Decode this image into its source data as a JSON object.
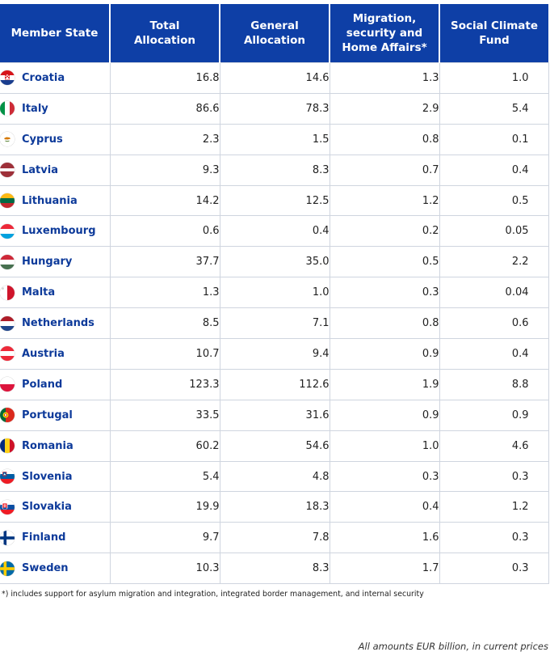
{
  "table": {
    "headers": {
      "state": "Member State",
      "total": [
        "Total",
        "Allocation"
      ],
      "general": [
        "General",
        "Allocation"
      ],
      "migration": [
        "Migration,",
        "security and",
        "Home Affairs*"
      ],
      "social": [
        "Social Climate",
        "Fund"
      ]
    },
    "rows": [
      {
        "name": "Croatia",
        "flag_icon": "croatia-flag-icon",
        "total": "16.8",
        "general": "14.6",
        "migration": "1.3",
        "social": "1.0"
      },
      {
        "name": "Italy",
        "flag_icon": "italy-flag-icon",
        "total": "86.6",
        "general": "78.3",
        "migration": "2.9",
        "social": "5.4"
      },
      {
        "name": "Cyprus",
        "flag_icon": "cyprus-flag-icon",
        "total": "2.3",
        "general": "1.5",
        "migration": "0.8",
        "social": "0.1"
      },
      {
        "name": "Latvia",
        "flag_icon": "latvia-flag-icon",
        "total": "9.3",
        "general": "8.3",
        "migration": "0.7",
        "social": "0.4"
      },
      {
        "name": "Lithuania",
        "flag_icon": "lithuania-flag-icon",
        "total": "14.2",
        "general": "12.5",
        "migration": "1.2",
        "social": "0.5"
      },
      {
        "name": "Luxembourg",
        "flag_icon": "luxembourg-flag-icon",
        "total": "0.6",
        "general": "0.4",
        "migration": "0.2",
        "social": "0.05"
      },
      {
        "name": "Hungary",
        "flag_icon": "hungary-flag-icon",
        "total": "37.7",
        "general": "35.0",
        "migration": "0.5",
        "social": "2.2"
      },
      {
        "name": "Malta",
        "flag_icon": "malta-flag-icon",
        "total": "1.3",
        "general": "1.0",
        "migration": "0.3",
        "social": "0.04"
      },
      {
        "name": "Netherlands",
        "flag_icon": "netherlands-flag-icon",
        "total": "8.5",
        "general": "7.1",
        "migration": "0.8",
        "social": "0.6"
      },
      {
        "name": "Austria",
        "flag_icon": "austria-flag-icon",
        "total": "10.7",
        "general": "9.4",
        "migration": "0.9",
        "social": "0.4"
      },
      {
        "name": "Poland",
        "flag_icon": "poland-flag-icon",
        "total": "123.3",
        "general": "112.6",
        "migration": "1.9",
        "social": "8.8"
      },
      {
        "name": "Portugal",
        "flag_icon": "portugal-flag-icon",
        "total": "33.5",
        "general": "31.6",
        "migration": "0.9",
        "social": "0.9"
      },
      {
        "name": "Romania",
        "flag_icon": "romania-flag-icon",
        "total": "60.2",
        "general": "54.6",
        "migration": "1.0",
        "social": "4.6"
      },
      {
        "name": "Slovenia",
        "flag_icon": "slovenia-flag-icon",
        "total": "5.4",
        "general": "4.8",
        "migration": "0.3",
        "social": "0.3"
      },
      {
        "name": "Slovakia",
        "flag_icon": "slovakia-flag-icon",
        "total": "19.9",
        "general": "18.3",
        "migration": "0.4",
        "social": "1.2"
      },
      {
        "name": "Finland",
        "flag_icon": "finland-flag-icon",
        "total": "9.7",
        "general": "7.8",
        "migration": "1.6",
        "social": "0.3"
      },
      {
        "name": "Sweden",
        "flag_icon": "sweden-flag-icon",
        "total": "10.3",
        "general": "8.3",
        "migration": "1.7",
        "social": "0.3"
      }
    ]
  },
  "footnote": "*) includes support for asylum migration and integration, integrated border management, and internal security",
  "units_note": "All amounts EUR billion, in current prices",
  "colors": {
    "header_bg": "#0e3fa6",
    "state_name": "#0d3a9a",
    "gridline": "#cfd5df"
  }
}
